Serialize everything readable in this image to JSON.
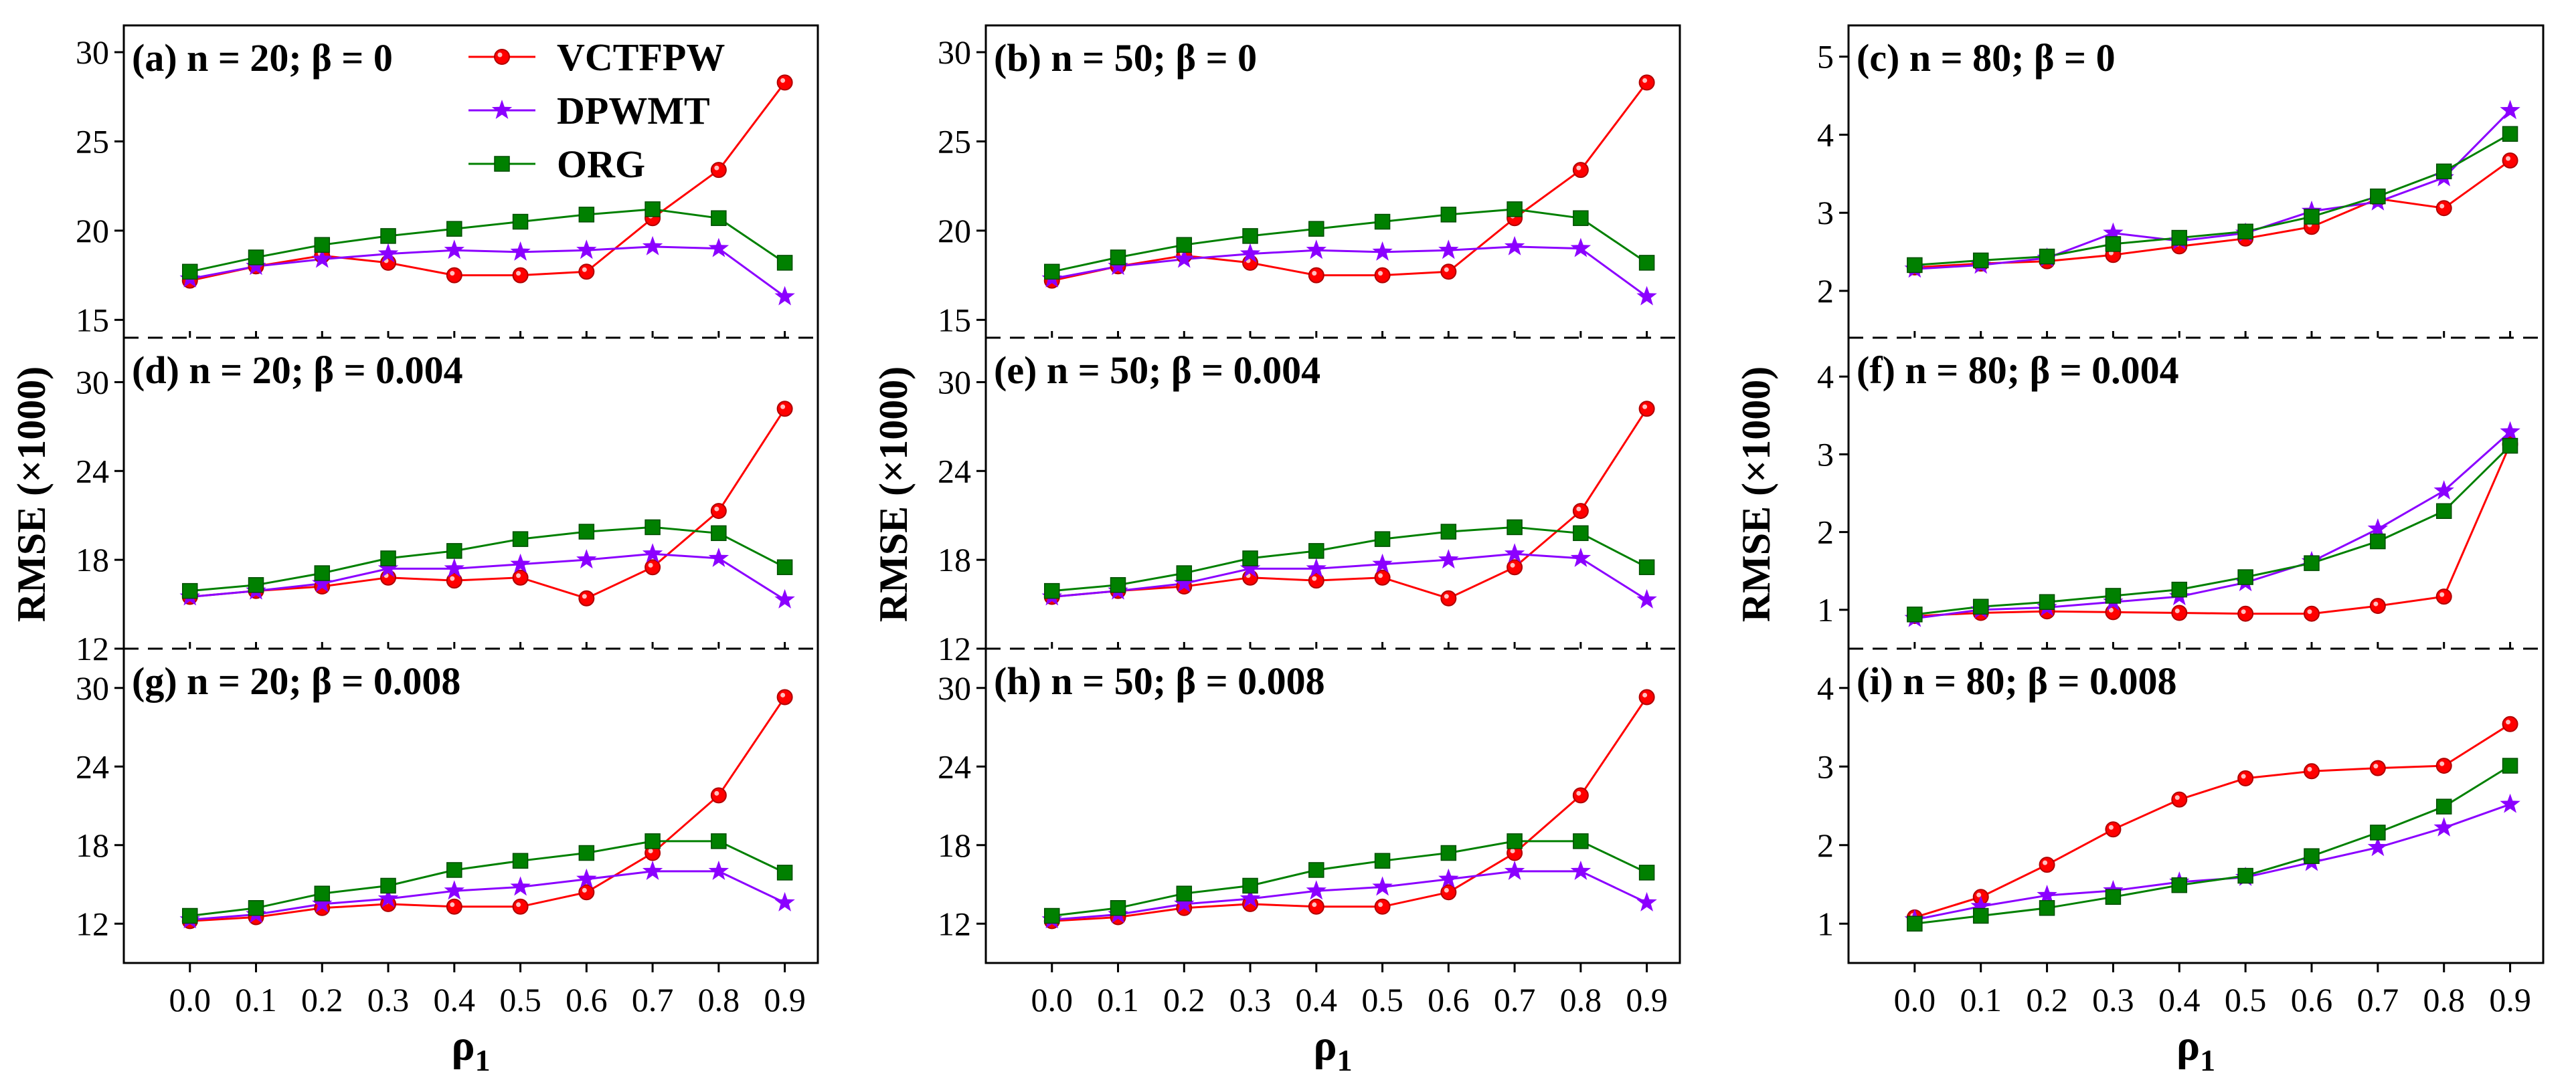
{
  "figure": {
    "ylabel": "RMSE (×1000)",
    "xlabel": "ρ1",
    "xlabel_main": "ρ",
    "xlabel_sub": "1"
  },
  "legend": {
    "location": "top-left inside panel (a)",
    "entries": [
      {
        "label": "VCTFPW",
        "color": "#ff0000",
        "marker": "circle"
      },
      {
        "label": "DPWMT",
        "color": "#8b00ff",
        "marker": "star"
      },
      {
        "label": "ORG",
        "color": "#008000",
        "marker": "square"
      }
    ]
  },
  "chart_data": [
    {
      "id": "a",
      "type": "line",
      "title": "(a) n = 20; β = 0",
      "ylim": [
        14,
        31.5
      ],
      "yticks": [
        15,
        20,
        25,
        30
      ],
      "x": [
        0.0,
        0.1,
        0.2,
        0.3,
        0.4,
        0.5,
        0.6,
        0.7,
        0.8,
        0.9
      ],
      "series": [
        {
          "name": "VCTFPW",
          "values": [
            17.2,
            18.0,
            18.6,
            18.2,
            17.5,
            17.5,
            17.7,
            20.7,
            23.4,
            28.3
          ]
        },
        {
          "name": "DPWMT",
          "values": [
            17.3,
            18.0,
            18.4,
            18.7,
            18.9,
            18.8,
            18.9,
            19.1,
            19.0,
            16.3
          ]
        },
        {
          "name": "ORG",
          "values": [
            17.7,
            18.5,
            19.2,
            19.7,
            20.1,
            20.5,
            20.9,
            21.2,
            20.7,
            18.2
          ]
        }
      ]
    },
    {
      "id": "b",
      "type": "line",
      "title": "(b) n = 50; β = 0",
      "ylim": [
        14,
        31.5
      ],
      "yticks": [
        15,
        20,
        25,
        30
      ],
      "x": [
        0.0,
        0.1,
        0.2,
        0.3,
        0.4,
        0.5,
        0.6,
        0.7,
        0.8,
        0.9
      ],
      "series": [
        {
          "name": "VCTFPW",
          "values": [
            17.2,
            18.0,
            18.6,
            18.2,
            17.5,
            17.5,
            17.7,
            20.7,
            23.4,
            28.3
          ]
        },
        {
          "name": "DPWMT",
          "values": [
            17.3,
            18.0,
            18.4,
            18.7,
            18.9,
            18.8,
            18.9,
            19.1,
            19.0,
            16.3
          ]
        },
        {
          "name": "ORG",
          "values": [
            17.7,
            18.5,
            19.2,
            19.7,
            20.1,
            20.5,
            20.9,
            21.2,
            20.7,
            18.2
          ]
        }
      ]
    },
    {
      "id": "c",
      "type": "line",
      "title": "(c) n = 80; β = 0",
      "ylim": [
        1.4,
        5.4
      ],
      "yticks": [
        2,
        3,
        4,
        5
      ],
      "x": [
        0.0,
        0.1,
        0.2,
        0.3,
        0.4,
        0.5,
        0.6,
        0.7,
        0.8,
        0.9
      ],
      "series": [
        {
          "name": "VCTFPW",
          "values": [
            2.3,
            2.35,
            2.38,
            2.46,
            2.57,
            2.67,
            2.82,
            3.18,
            3.06,
            3.67
          ]
        },
        {
          "name": "DPWMT",
          "values": [
            2.28,
            2.33,
            2.42,
            2.74,
            2.64,
            2.74,
            3.02,
            3.14,
            3.45,
            4.31
          ]
        },
        {
          "name": "ORG",
          "values": [
            2.33,
            2.39,
            2.44,
            2.6,
            2.68,
            2.76,
            2.95,
            3.21,
            3.53,
            4.01
          ]
        }
      ]
    },
    {
      "id": "d",
      "type": "line",
      "title": "(d) n = 20; β = 0.004",
      "ylim": [
        12,
        33
      ],
      "yticks": [
        12,
        18,
        24,
        30
      ],
      "x": [
        0.0,
        0.1,
        0.2,
        0.3,
        0.4,
        0.5,
        0.6,
        0.7,
        0.8,
        0.9
      ],
      "series": [
        {
          "name": "VCTFPW",
          "values": [
            15.5,
            15.9,
            16.2,
            16.8,
            16.6,
            16.8,
            15.4,
            17.5,
            21.3,
            28.2
          ]
        },
        {
          "name": "DPWMT",
          "values": [
            15.5,
            15.9,
            16.4,
            17.4,
            17.4,
            17.7,
            18.0,
            18.4,
            18.1,
            15.3
          ]
        },
        {
          "name": "ORG",
          "values": [
            15.9,
            16.3,
            17.1,
            18.1,
            18.6,
            19.4,
            19.9,
            20.2,
            19.8,
            17.5
          ]
        }
      ]
    },
    {
      "id": "e",
      "type": "line",
      "title": "(e) n = 50; β = 0.004",
      "ylim": [
        12,
        33
      ],
      "yticks": [
        12,
        18,
        24,
        30
      ],
      "x": [
        0.0,
        0.1,
        0.2,
        0.3,
        0.4,
        0.5,
        0.6,
        0.7,
        0.8,
        0.9
      ],
      "series": [
        {
          "name": "VCTFPW",
          "values": [
            15.5,
            15.9,
            16.2,
            16.8,
            16.6,
            16.8,
            15.4,
            17.5,
            21.3,
            28.2
          ]
        },
        {
          "name": "DPWMT",
          "values": [
            15.5,
            15.9,
            16.4,
            17.4,
            17.4,
            17.7,
            18.0,
            18.4,
            18.1,
            15.3
          ]
        },
        {
          "name": "ORG",
          "values": [
            15.9,
            16.3,
            17.1,
            18.1,
            18.6,
            19.4,
            19.9,
            20.2,
            19.8,
            17.5
          ]
        }
      ]
    },
    {
      "id": "f",
      "type": "line",
      "title": "(f) n = 80; β = 0.004",
      "ylim": [
        0.5,
        4.5
      ],
      "yticks": [
        1,
        2,
        3,
        4
      ],
      "x": [
        0.0,
        0.1,
        0.2,
        0.3,
        0.4,
        0.5,
        0.6,
        0.7,
        0.8,
        0.9
      ],
      "series": [
        {
          "name": "VCTFPW",
          "values": [
            0.92,
            0.96,
            0.98,
            0.97,
            0.96,
            0.95,
            0.95,
            1.05,
            1.17,
            3.13
          ]
        },
        {
          "name": "DPWMT",
          "values": [
            0.89,
            1.0,
            1.03,
            1.1,
            1.17,
            1.35,
            1.62,
            2.04,
            2.53,
            3.29
          ]
        },
        {
          "name": "ORG",
          "values": [
            0.94,
            1.04,
            1.1,
            1.18,
            1.26,
            1.42,
            1.6,
            1.88,
            2.27,
            3.11
          ]
        }
      ]
    },
    {
      "id": "g",
      "type": "line",
      "title": "(g) n = 20; β = 0.008",
      "ylim": [
        9,
        33
      ],
      "yticks": [
        12,
        18,
        24,
        30
      ],
      "x": [
        0.0,
        0.1,
        0.2,
        0.3,
        0.4,
        0.5,
        0.6,
        0.7,
        0.8,
        0.9
      ],
      "series": [
        {
          "name": "VCTFPW",
          "values": [
            12.2,
            12.5,
            13.2,
            13.5,
            13.3,
            13.3,
            14.4,
            17.4,
            21.8,
            29.3
          ]
        },
        {
          "name": "DPWMT",
          "values": [
            12.3,
            12.7,
            13.5,
            13.9,
            14.5,
            14.8,
            15.4,
            16.0,
            16.0,
            13.6
          ]
        },
        {
          "name": "ORG",
          "values": [
            12.6,
            13.2,
            14.3,
            14.9,
            16.1,
            16.8,
            17.4,
            18.3,
            18.3,
            15.9
          ]
        }
      ]
    },
    {
      "id": "h",
      "type": "line",
      "title": "(h) n = 50; β = 0.008",
      "ylim": [
        9,
        33
      ],
      "yticks": [
        12,
        18,
        24,
        30
      ],
      "x": [
        0.0,
        0.1,
        0.2,
        0.3,
        0.4,
        0.5,
        0.6,
        0.7,
        0.8,
        0.9
      ],
      "series": [
        {
          "name": "VCTFPW",
          "values": [
            12.2,
            12.5,
            13.2,
            13.5,
            13.3,
            13.3,
            14.4,
            17.4,
            21.8,
            29.3
          ]
        },
        {
          "name": "DPWMT",
          "values": [
            12.3,
            12.7,
            13.5,
            13.9,
            14.5,
            14.8,
            15.4,
            16.0,
            16.0,
            13.6
          ]
        },
        {
          "name": "ORG",
          "values": [
            12.6,
            13.2,
            14.3,
            14.9,
            16.1,
            16.8,
            17.4,
            18.3,
            18.3,
            15.9
          ]
        }
      ]
    },
    {
      "id": "i",
      "type": "line",
      "title": "(i) n = 80; β = 0.008",
      "ylim": [
        0.5,
        4.5
      ],
      "yticks": [
        1,
        2,
        3,
        4
      ],
      "x": [
        0.0,
        0.1,
        0.2,
        0.3,
        0.4,
        0.5,
        0.6,
        0.7,
        0.8,
        0.9
      ],
      "series": [
        {
          "name": "VCTFPW",
          "values": [
            1.08,
            1.34,
            1.75,
            2.2,
            2.58,
            2.85,
            2.94,
            2.98,
            3.01,
            3.54
          ]
        },
        {
          "name": "DPWMT",
          "values": [
            1.05,
            1.22,
            1.36,
            1.42,
            1.53,
            1.59,
            1.78,
            1.97,
            2.22,
            2.52
          ]
        },
        {
          "name": "ORG",
          "values": [
            1.0,
            1.1,
            1.2,
            1.34,
            1.49,
            1.61,
            1.86,
            2.16,
            2.49,
            3.01
          ]
        }
      ]
    }
  ]
}
